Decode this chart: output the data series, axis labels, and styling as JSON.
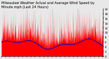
{
  "title_line1": "Milwaukee Weather Actual and Average Wind Speed by",
  "title_line2": "Minute mph (Last 24 Hours)",
  "title_fontsize": 3.5,
  "bg_color": "#e8e8e8",
  "plot_bg_color": "#e8e8e8",
  "grid_color": "#999999",
  "actual_color": "#ff0000",
  "avg_color": "#0000cc",
  "ylim": [
    0,
    20
  ],
  "ytick_values": [
    0,
    2,
    4,
    6,
    8,
    10,
    12,
    14,
    16,
    18,
    20
  ],
  "n_points": 1440,
  "num_vgrid": 3,
  "num_xticks": 25
}
